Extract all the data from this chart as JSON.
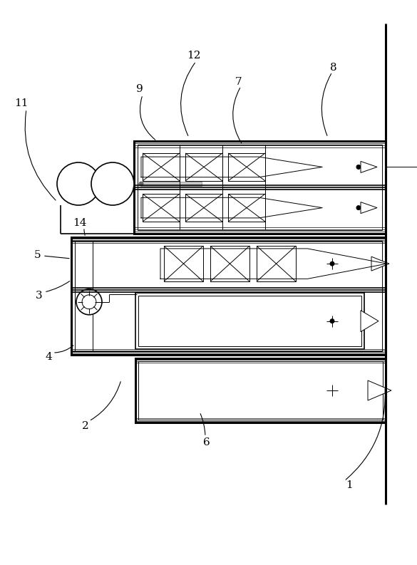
{
  "bg_color": "#ffffff",
  "line_color": "#000000",
  "figsize": [
    5.85,
    7.93
  ],
  "dpi": 100
}
